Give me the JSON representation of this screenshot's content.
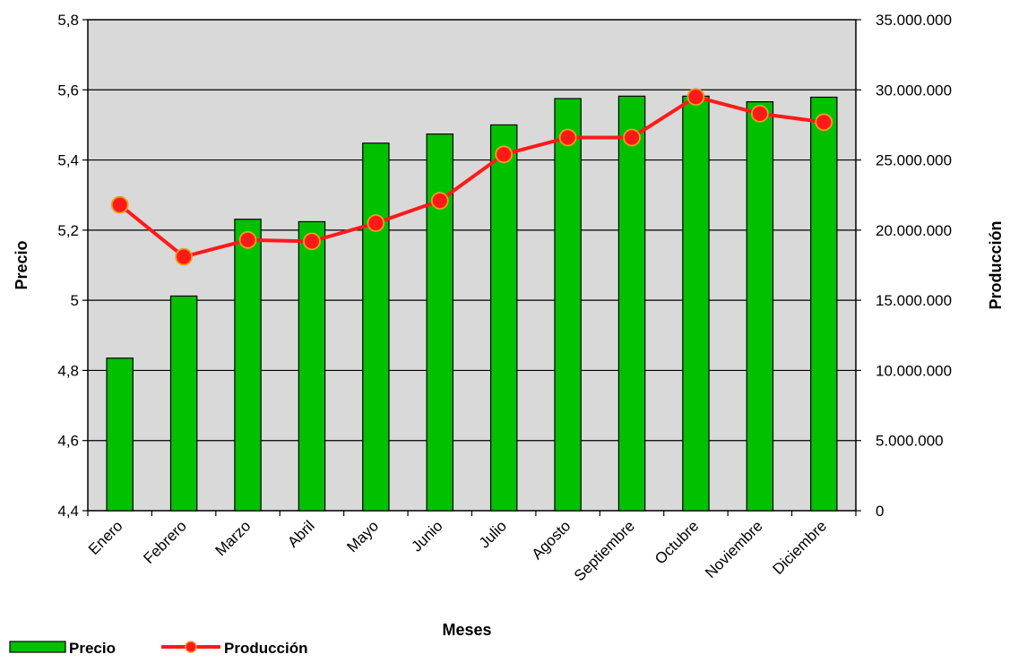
{
  "chart_data": {
    "type": "bar",
    "title": "",
    "categories": [
      "Enero",
      "Febrero",
      "Marzo",
      "Abril",
      "Mayo",
      "Junio",
      "Julio",
      "Agosto",
      "Septiembre",
      "Octubre",
      "Noviembre",
      "Diciembre"
    ],
    "xlabel": "Meses",
    "ylabel": "Precio",
    "y2label": "Producción",
    "ylim": [
      4.4,
      5.8
    ],
    "y2lim": [
      0,
      35000000
    ],
    "yticks": [
      "4,4",
      "4,6",
      "4,8",
      "5",
      "5,2",
      "5,4",
      "5,6",
      "5,8"
    ],
    "y2ticks": [
      "0",
      "5.000.000",
      "10.000.000",
      "15.000.000",
      "20.000.000",
      "25.000.000",
      "30.000.000",
      "35.000.000"
    ],
    "series": [
      {
        "name": "Precio",
        "type": "bar",
        "axis": "left",
        "color": "#00c000",
        "values": [
          4.835,
          5.012,
          5.231,
          5.224,
          5.448,
          5.474,
          5.5,
          5.575,
          5.582,
          5.582,
          5.566,
          5.579
        ]
      },
      {
        "name": "Producción",
        "type": "line",
        "axis": "right",
        "color": "#ff1a1a",
        "values": [
          21800000,
          18100000,
          19300000,
          19200000,
          20500000,
          22100000,
          25400000,
          26600000,
          26600000,
          29500000,
          28300000,
          27700000
        ]
      }
    ],
    "grid": true,
    "plot_background": "#d9d9d9",
    "legend_position": "bottom-left"
  }
}
